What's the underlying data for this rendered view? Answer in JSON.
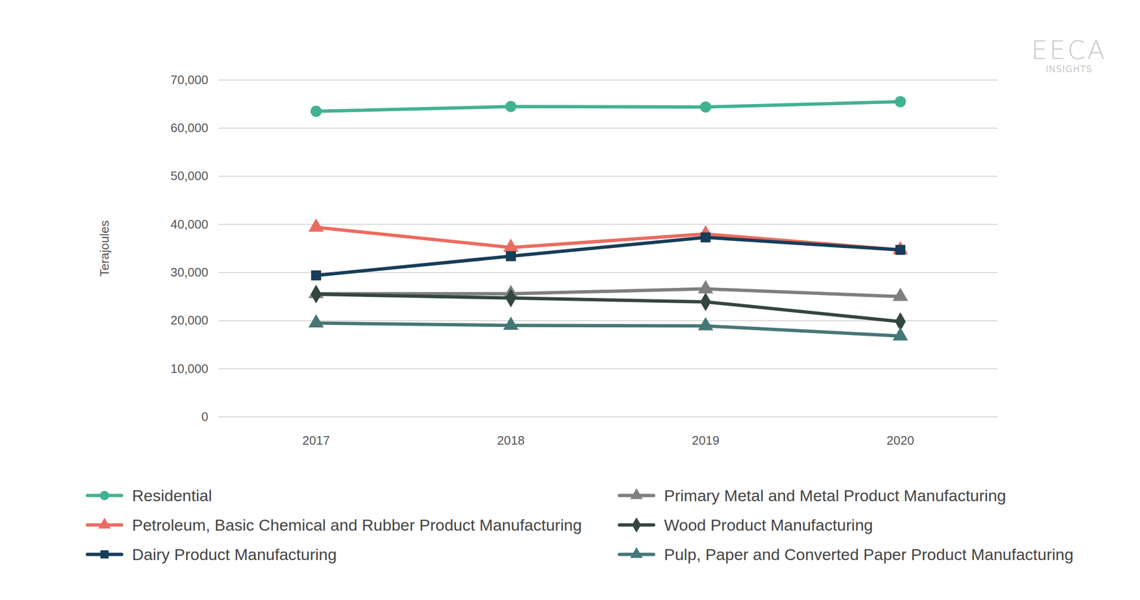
{
  "chart_data": {
    "type": "line",
    "annotations": [
      "EECA",
      "INSIGHTS"
    ],
    "y_label": "Terajoules",
    "categories": [
      "2017",
      "2018",
      "2019",
      "2020"
    ],
    "series": [
      {
        "name": "Residential",
        "color": "#43b293",
        "marker": "circle",
        "values": [
          63500,
          64500,
          64400,
          65500
        ]
      },
      {
        "name": "Petroleum, Basic Chemical and Rubber Product Manufacturing",
        "color": "#ec6b61",
        "marker": "triangle",
        "values": [
          39400,
          35200,
          38000,
          34700
        ]
      },
      {
        "name": "Dairy Product Manufacturing",
        "color": "#173d58",
        "marker": "square",
        "values": [
          29400,
          33400,
          37300,
          34700
        ]
      },
      {
        "name": "Primary Metal and Metal Product Manufacturing",
        "color": "#7f7f7f",
        "marker": "triangle",
        "values": [
          25600,
          25600,
          26600,
          25000
        ]
      },
      {
        "name": "Wood Product Manufacturing",
        "color": "#33463f",
        "marker": "diamond",
        "values": [
          25500,
          24700,
          23900,
          19800
        ]
      },
      {
        "name": "Pulp, Paper and Converted Paper Product Manufacturing",
        "color": "#467777",
        "marker": "triangle",
        "values": [
          19500,
          19000,
          18900,
          16800
        ]
      }
    ],
    "ylim": [
      0,
      70000
    ],
    "yticks": [
      0,
      10000,
      20000,
      30000,
      40000,
      50000,
      60000,
      70000
    ],
    "grid": true,
    "legend": "bottom"
  }
}
